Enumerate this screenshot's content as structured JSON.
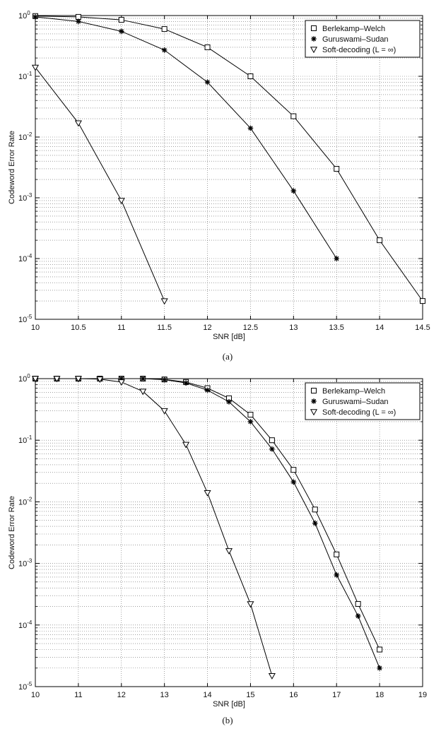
{
  "chart_data": [
    {
      "type": "line",
      "caption": "(a)",
      "xlabel": "SNR [dB]",
      "ylabel": "Codeword Error Rate",
      "xlim": [
        10,
        14.5
      ],
      "ylim": [
        1e-05,
        1
      ],
      "yscale": "log",
      "x_ticks": [
        "10",
        "10.5",
        "11",
        "11.5",
        "12",
        "12.5",
        "13",
        "13.5",
        "14",
        "14.5"
      ],
      "y_ticks": [
        {
          "base": "10",
          "exp": "0"
        },
        {
          "base": "10",
          "exp": "-1"
        },
        {
          "base": "10",
          "exp": "-2"
        },
        {
          "base": "10",
          "exp": "-3"
        },
        {
          "base": "10",
          "exp": "-4"
        },
        {
          "base": "10",
          "exp": "-5"
        }
      ],
      "grid": true,
      "legend": "top-right",
      "series": [
        {
          "name": "Berlekamp–Welch",
          "marker": "square",
          "x": [
            10,
            10.5,
            11,
            11.5,
            12,
            12.5,
            13,
            13.5,
            14,
            14.5
          ],
          "y": [
            0.98,
            0.95,
            0.85,
            0.6,
            0.3,
            0.1,
            0.022,
            0.003,
            0.0002,
            2e-05
          ]
        },
        {
          "name": "Guruswami–Sudan",
          "marker": "star",
          "x": [
            10,
            10.5,
            11,
            11.5,
            12,
            12.5,
            13,
            13.5
          ],
          "y": [
            0.95,
            0.8,
            0.55,
            0.27,
            0.08,
            0.014,
            0.0013,
            0.0001
          ]
        },
        {
          "name": "Soft-decoding (L = ∞)",
          "marker": "triangle-down",
          "x": [
            10,
            10.5,
            11,
            11.5
          ],
          "y": [
            0.14,
            0.017,
            0.0009,
            2e-05
          ]
        }
      ]
    },
    {
      "type": "line",
      "caption": "(b)",
      "xlabel": "SNR [dB]",
      "ylabel": "Codeword Error Rate",
      "xlim": [
        10,
        19
      ],
      "ylim": [
        1e-05,
        1
      ],
      "yscale": "log",
      "x_ticks": [
        "10",
        "11",
        "12",
        "13",
        "14",
        "15",
        "16",
        "17",
        "18",
        "19"
      ],
      "y_ticks": [
        {
          "base": "10",
          "exp": "0"
        },
        {
          "base": "10",
          "exp": "-1"
        },
        {
          "base": "10",
          "exp": "-2"
        },
        {
          "base": "10",
          "exp": "-3"
        },
        {
          "base": "10",
          "exp": "-4"
        },
        {
          "base": "10",
          "exp": "-5"
        }
      ],
      "grid": true,
      "legend": "top-right",
      "series": [
        {
          "name": "Berlekamp–Welch",
          "marker": "square",
          "x": [
            10,
            10.5,
            11,
            11.5,
            12,
            12.5,
            13,
            13.5,
            14,
            14.5,
            15,
            15.5,
            16,
            16.5,
            17,
            17.5,
            18
          ],
          "y": [
            1,
            1,
            1,
            1,
            1,
            1,
            0.97,
            0.88,
            0.7,
            0.48,
            0.26,
            0.1,
            0.033,
            0.0075,
            0.0014,
            0.00022,
            4e-05
          ]
        },
        {
          "name": "Guruswami–Sudan",
          "marker": "star",
          "x": [
            10,
            10.5,
            11,
            11.5,
            12,
            12.5,
            13,
            13.5,
            14,
            14.5,
            15,
            15.5,
            16,
            16.5,
            17,
            17.5,
            18
          ],
          "y": [
            1,
            1,
            1,
            1,
            1,
            1,
            0.96,
            0.85,
            0.65,
            0.42,
            0.2,
            0.072,
            0.021,
            0.0045,
            0.00065,
            0.00014,
            2e-05
          ]
        },
        {
          "name": "Soft-decoding (L = ∞)",
          "marker": "triangle-down",
          "x": [
            10,
            10.5,
            11,
            11.5,
            12,
            12.5,
            13,
            13.5,
            14,
            14.5,
            15,
            15.5
          ],
          "y": [
            1,
            1,
            1,
            0.98,
            0.88,
            0.62,
            0.3,
            0.085,
            0.014,
            0.0016,
            0.00022,
            1.5e-05
          ]
        }
      ]
    }
  ]
}
